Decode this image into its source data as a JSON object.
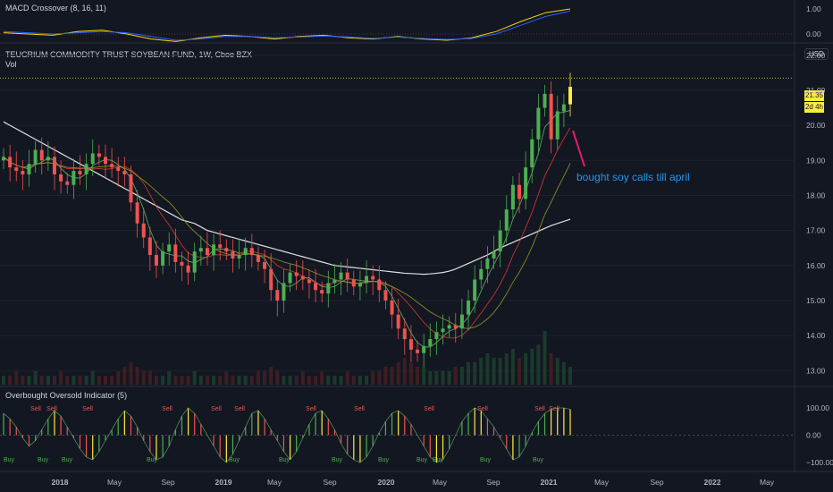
{
  "header": {
    "macd_title": "MACD Crossover (8, 16, 11)",
    "main_title": "TEUCRIUM COMMODITY TRUST SOYBEAN FUND, 1W, Cboe BZX",
    "vol_label": "Vol",
    "osc_title": "Overbought Oversold Indicator (5)",
    "currency": "USD"
  },
  "price_tag": {
    "value": "21.35",
    "countdown": "2d 4h"
  },
  "annotation": {
    "text": "bought soy calls till april"
  },
  "signals": {
    "sell": "Sell",
    "buy": "Buy"
  },
  "colors": {
    "background": "#131722",
    "bull": "#26a69a",
    "bull_candle": "#4caf50",
    "bear": "#ef5350",
    "highlight": "#ffeb3b",
    "annotation_text": "#2196f3",
    "arrow": "#e91e63",
    "ma200": "#e0e0e0",
    "ma_red": "#e53935",
    "ma_olive": "#9e9d24",
    "ma_green": "#66bb6a",
    "macd_line": "#2962ff",
    "signal_line": "#ffd600"
  },
  "chart_data": [
    {
      "type": "line",
      "title": "MACD Crossover (8, 16, 11)",
      "y_ticks": [
        1.0,
        0.0
      ],
      "y_tick_labels": [
        "1.00",
        "0.00"
      ],
      "series": [
        {
          "values": [
            0.05,
            0.0,
            -0.05,
            0.1,
            0.15,
            0.0,
            -0.2,
            -0.3,
            -0.15,
            -0.05,
            -0.1,
            -0.2,
            -0.1,
            -0.05,
            -0.15,
            -0.2,
            -0.1,
            -0.2,
            -0.25,
            -0.15,
            0.1,
            0.5,
            0.85,
            1.0
          ]
        },
        {
          "values": [
            0.1,
            0.05,
            0.0,
            0.05,
            0.1,
            0.05,
            -0.1,
            -0.25,
            -0.2,
            -0.1,
            -0.1,
            -0.15,
            -0.12,
            -0.08,
            -0.12,
            -0.18,
            -0.12,
            -0.18,
            -0.22,
            -0.18,
            0.0,
            0.35,
            0.7,
            0.92
          ]
        }
      ]
    },
    {
      "type": "candlestick",
      "title": "TEUCRIUM COMMODITY TRUST SOYBEAN FUND, 1W, Cboe BZX",
      "y_ticks": [
        22.0,
        21.0,
        20.0,
        19.0,
        18.0,
        17.0,
        16.0,
        15.0,
        14.0,
        13.0
      ],
      "y_tick_labels": [
        "22.00",
        "21.00",
        "20.00",
        "19.00",
        "18.00",
        "17.00",
        "16.00",
        "15.00",
        "14.00",
        "13.00"
      ],
      "ylim": [
        12.6,
        22.3
      ],
      "x_tick_labels": [
        "2018",
        "May",
        "Sep",
        "2019",
        "May",
        "Sep",
        "2020",
        "May",
        "Sep",
        "2021",
        "May",
        "Sep",
        "2022",
        "May"
      ],
      "close_series": [
        19.1,
        18.8,
        18.7,
        18.6,
        18.9,
        19.3,
        19.0,
        19.1,
        18.6,
        18.4,
        18.3,
        18.7,
        18.6,
        18.9,
        19.2,
        19.1,
        18.9,
        18.8,
        18.7,
        18.6,
        17.8,
        17.2,
        16.8,
        16.3,
        16.0,
        16.4,
        16.6,
        16.1,
        16.0,
        15.8,
        16.4,
        16.5,
        16.3,
        16.6,
        16.5,
        16.4,
        16.2,
        16.3,
        16.5,
        16.3,
        16.1,
        15.9,
        15.3,
        15.0,
        15.5,
        15.8,
        15.7,
        15.6,
        15.5,
        15.3,
        15.2,
        15.5,
        15.6,
        15.8,
        15.6,
        15.4,
        15.5,
        15.7,
        15.6,
        15.3,
        15.0,
        14.6,
        14.2,
        13.9,
        13.6,
        13.5,
        13.7,
        13.9,
        14.1,
        14.2,
        14.3,
        14.2,
        14.6,
        15.0,
        15.6,
        15.9,
        16.2,
        16.4,
        17.0,
        17.6,
        18.3,
        17.9,
        18.8,
        19.6,
        20.5,
        20.9,
        19.6,
        20.4,
        20.6,
        21.1
      ],
      "volume_series": [
        2,
        2,
        3,
        2,
        2,
        3,
        2,
        2,
        2,
        3,
        2,
        2,
        2,
        2,
        3,
        2,
        2,
        2,
        3,
        4,
        5,
        4,
        3,
        3,
        2,
        2,
        3,
        2,
        2,
        2,
        3,
        2,
        2,
        2,
        2,
        3,
        2,
        2,
        2,
        2,
        3,
        3,
        4,
        3,
        2,
        2,
        2,
        3,
        2,
        2,
        3,
        2,
        2,
        2,
        3,
        2,
        2,
        2,
        3,
        3,
        4,
        4,
        5,
        6,
        5,
        4,
        4,
        3,
        3,
        3,
        3,
        4,
        4,
        5,
        5,
        6,
        7,
        6,
        6,
        7,
        8,
        6,
        7,
        8,
        9,
        12,
        7,
        6,
        5,
        4
      ],
      "overlays": [
        {
          "values": [
            20.1,
            20.0,
            19.9,
            19.8,
            19.7,
            19.6,
            19.5,
            19.4,
            19.3,
            19.2,
            19.1,
            19.0,
            18.9,
            18.8,
            18.7,
            18.6,
            18.5,
            18.4,
            18.3,
            18.2,
            18.1,
            18.0,
            17.9,
            17.8,
            17.7,
            17.6,
            17.5,
            17.4,
            17.3,
            17.25,
            17.2,
            17.1,
            17.0,
            16.95,
            16.9,
            16.85,
            16.8,
            16.75,
            16.7,
            16.65,
            16.6,
            16.55,
            16.5,
            16.45,
            16.4,
            16.35,
            16.3,
            16.25,
            16.2,
            16.15,
            16.1,
            16.05,
            16.0,
            15.98,
            15.96,
            15.94,
            15.92,
            15.9,
            15.88,
            15.86,
            15.84,
            15.82,
            15.8,
            15.78,
            15.77,
            15.76,
            15.75,
            15.76,
            15.78,
            15.8,
            15.84,
            15.9,
            15.98,
            16.06,
            16.14,
            16.22,
            16.3,
            16.4,
            16.5,
            16.58,
            16.66,
            16.74,
            16.82,
            16.9,
            16.98,
            17.06,
            17.14,
            17.2,
            17.26,
            17.32
          ]
        }
      ]
    },
    {
      "type": "bar",
      "title": "Overbought Oversold Indicator (5)",
      "y_ticks": [
        100.0,
        0.0,
        -100.0
      ],
      "y_tick_labels": [
        "100.00",
        "0.00",
        "−100.00"
      ],
      "ylim": [
        -100,
        100
      ],
      "values": [
        80,
        60,
        30,
        -10,
        -40,
        -20,
        20,
        60,
        90,
        70,
        30,
        -10,
        -50,
        -80,
        -90,
        -60,
        -20,
        20,
        60,
        90,
        70,
        30,
        -20,
        -60,
        -90,
        -80,
        -40,
        20,
        70,
        100,
        80,
        40,
        0,
        -40,
        -80,
        -100,
        -70,
        -20,
        30,
        80,
        90,
        60,
        20,
        -20,
        -60,
        -90,
        -60,
        -10,
        40,
        80,
        90,
        60,
        20,
        -30,
        -70,
        -90,
        -100,
        -80,
        -40,
        10,
        50,
        80,
        90,
        70,
        40,
        0,
        -40,
        -80,
        -100,
        -90,
        -50,
        0,
        50,
        80,
        100,
        90,
        60,
        30,
        -10,
        -50,
        -90,
        -80,
        -40,
        10,
        50,
        80,
        95,
        100,
        100,
        95
      ]
    }
  ]
}
